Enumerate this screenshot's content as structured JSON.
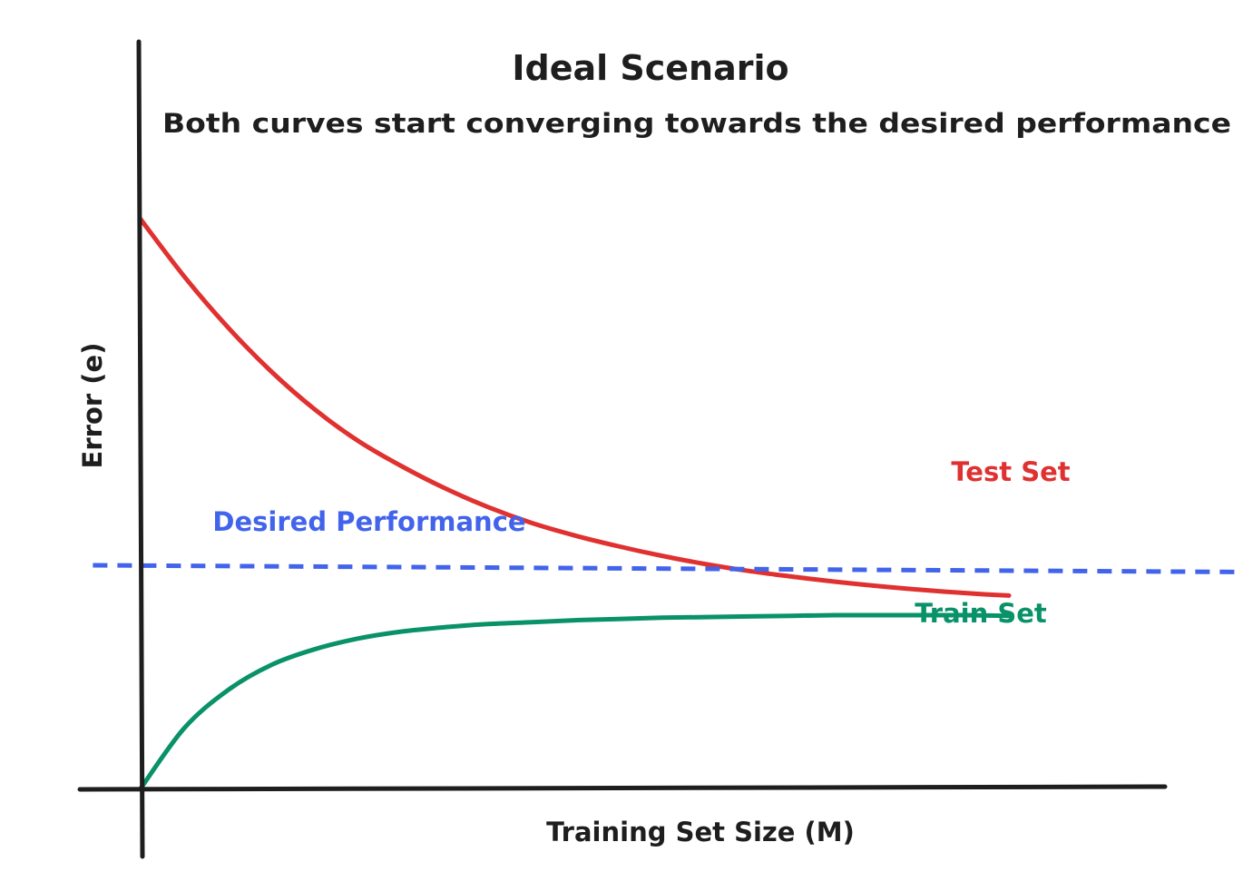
{
  "chart_data": {
    "type": "line",
    "title": "Ideal Scenario",
    "subtitle": "Both curves start converging towards the desired performance",
    "xlabel": "Training Set Size (M)",
    "ylabel": "Error (e)",
    "xlim": [
      0,
      1
    ],
    "ylim": [
      0,
      1
    ],
    "grid": false,
    "legend": "inline-labels",
    "series": [
      {
        "name": "Test Set",
        "color": "#e03131",
        "style": "solid",
        "x": [
          0.0,
          0.05,
          0.1,
          0.15,
          0.2,
          0.25,
          0.3,
          0.35,
          0.4,
          0.45,
          0.5,
          0.55,
          0.6,
          0.65,
          0.7,
          0.75,
          0.8,
          0.85,
          0.9,
          0.95,
          1.0
        ],
        "y": [
          0.9,
          0.81,
          0.73,
          0.66,
          0.6,
          0.55,
          0.51,
          0.475,
          0.445,
          0.42,
          0.4,
          0.383,
          0.368,
          0.355,
          0.344,
          0.335,
          0.327,
          0.32,
          0.314,
          0.309,
          0.305
        ]
      },
      {
        "name": "Train Set",
        "color": "#099268",
        "style": "solid",
        "x": [
          0.0,
          0.05,
          0.1,
          0.15,
          0.2,
          0.25,
          0.3,
          0.35,
          0.4,
          0.45,
          0.5,
          0.55,
          0.6,
          0.65,
          0.7,
          0.75,
          0.8,
          0.85,
          0.9,
          0.95,
          1.0
        ],
        "y": [
          0.0,
          0.095,
          0.155,
          0.195,
          0.22,
          0.237,
          0.248,
          0.255,
          0.26,
          0.263,
          0.266,
          0.268,
          0.27,
          0.271,
          0.272,
          0.273,
          0.274,
          0.274,
          0.274,
          0.274,
          0.273
        ]
      },
      {
        "name": "Desired Performance",
        "color": "#4263eb",
        "style": "dashed",
        "x": [
          -0.055,
          1.3
        ],
        "y": [
          0.353,
          0.342
        ]
      }
    ]
  }
}
